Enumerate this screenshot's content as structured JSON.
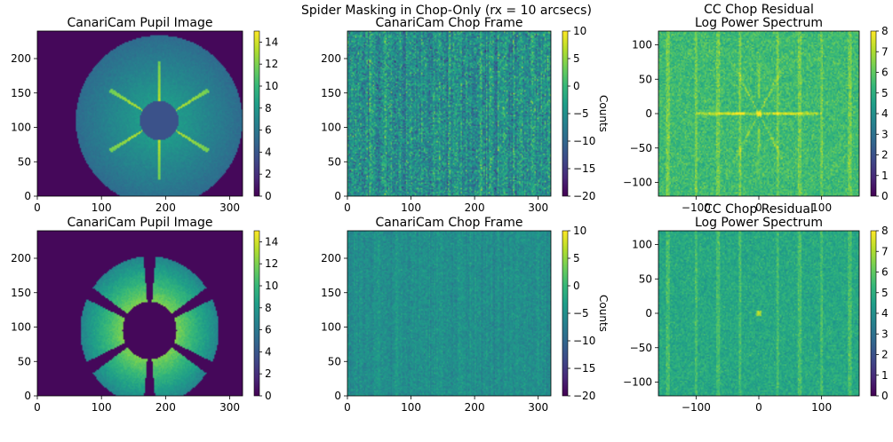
{
  "figure": {
    "suptitle": "Spider Masking in Chop-Only (rx = 10 arcsecs)"
  },
  "colormap": [
    "#440154",
    "#482878",
    "#3e4a89",
    "#31688e",
    "#26828e",
    "#1f9e89",
    "#35b779",
    "#6ece58",
    "#b5de2b",
    "#fde725"
  ],
  "chart_data": [
    {
      "type": "heatmap",
      "id": "pupil-top",
      "title": "CanariCam Pupil Image",
      "xlim": [
        0,
        320
      ],
      "ylim": [
        0,
        240
      ],
      "xticks": [
        0,
        100,
        200,
        300
      ],
      "yticks": [
        0,
        50,
        100,
        150,
        200
      ],
      "colorbar": {
        "min": 0,
        "max": 15,
        "ticks": [
          0,
          2,
          4,
          6,
          8,
          10,
          12,
          14
        ],
        "label": ""
      },
      "content": {
        "kind": "pupil-smooth",
        "center": [
          190,
          110
        ],
        "outer_radius": 130,
        "inner_radius": 30,
        "spider_angles_deg": [
          150,
          210,
          270,
          330,
          30,
          90
        ],
        "spider_length": 90
      }
    },
    {
      "type": "heatmap",
      "id": "chop-top",
      "title": "CanariCam Chop Frame",
      "xlim": [
        0,
        320
      ],
      "ylim": [
        0,
        240
      ],
      "xticks": [
        0,
        100,
        200,
        300
      ],
      "yticks": [
        0,
        50,
        100,
        150,
        200
      ],
      "colorbar": {
        "min": -20,
        "max": 10,
        "ticks": [
          -20,
          -15,
          -10,
          -5,
          0,
          5,
          10
        ],
        "label": "Counts"
      },
      "content": {
        "kind": "noise",
        "level": 0.5,
        "contrast": 0.42,
        "column_stripes": 0.12
      }
    },
    {
      "type": "heatmap",
      "id": "power-top",
      "title": "CC Chop Residual\nLog Power Spectrum",
      "xlim": [
        -160,
        160
      ],
      "ylim": [
        -120,
        120
      ],
      "xticks": [
        -100,
        0,
        100
      ],
      "yticks": [
        -100,
        -50,
        0,
        50,
        100
      ],
      "colorbar": {
        "min": 0,
        "max": 8,
        "ticks": [
          0,
          1,
          2,
          3,
          4,
          5,
          6,
          7,
          8
        ],
        "label": ""
      },
      "content": {
        "kind": "power",
        "level": 0.68,
        "contrast": 0.22,
        "streaks_x": [
          -145,
          -100,
          -65,
          -30,
          30,
          65,
          100,
          145
        ],
        "star_angles_deg": [
          0,
          60,
          120,
          180,
          240,
          300,
          90,
          270
        ],
        "star_length": 100,
        "horizontal_line_length": 100
      }
    },
    {
      "type": "heatmap",
      "id": "pupil-bottom",
      "title": "CanariCam Pupil Image",
      "xlim": [
        0,
        320
      ],
      "ylim": [
        0,
        240
      ],
      "xticks": [
        0,
        100,
        200,
        300
      ],
      "yticks": [
        0,
        50,
        100,
        150,
        200
      ],
      "colorbar": {
        "min": 0,
        "max": 15,
        "ticks": [
          0,
          2,
          4,
          6,
          8,
          10,
          12,
          14
        ],
        "label": ""
      },
      "content": {
        "kind": "pupil-segmented",
        "center": [
          175,
          95
        ],
        "outer_radius": 108,
        "inner_radius": 42,
        "segments": 6
      }
    },
    {
      "type": "heatmap",
      "id": "chop-bottom",
      "title": "CanariCam Chop Frame",
      "xlim": [
        0,
        320
      ],
      "ylim": [
        0,
        240
      ],
      "xticks": [
        0,
        100,
        200,
        300
      ],
      "yticks": [
        0,
        50,
        100,
        150,
        200
      ],
      "colorbar": {
        "min": -20,
        "max": 10,
        "ticks": [
          -20,
          -15,
          -10,
          -5,
          0,
          5,
          10
        ],
        "label": "Counts"
      },
      "content": {
        "kind": "noise",
        "level": 0.5,
        "contrast": 0.16,
        "column_stripes": 0.04
      }
    },
    {
      "type": "heatmap",
      "id": "power-bottom",
      "title": "CC Chop Residual\nLog Power Spectrum",
      "xlim": [
        -160,
        160
      ],
      "ylim": [
        -120,
        120
      ],
      "xticks": [
        -100,
        0,
        100
      ],
      "yticks": [
        -100,
        -50,
        0,
        50,
        100
      ],
      "colorbar": {
        "min": 0,
        "max": 8,
        "ticks": [
          0,
          1,
          2,
          3,
          4,
          5,
          6,
          7,
          8
        ],
        "label": ""
      },
      "content": {
        "kind": "power",
        "level": 0.6,
        "contrast": 0.18,
        "streaks_x": [
          -145,
          -100,
          -65,
          -30,
          30,
          65,
          100,
          145
        ],
        "star_angles_deg": [
          0,
          90,
          180,
          270
        ],
        "star_length": 20,
        "horizontal_line_length": 0
      }
    }
  ]
}
